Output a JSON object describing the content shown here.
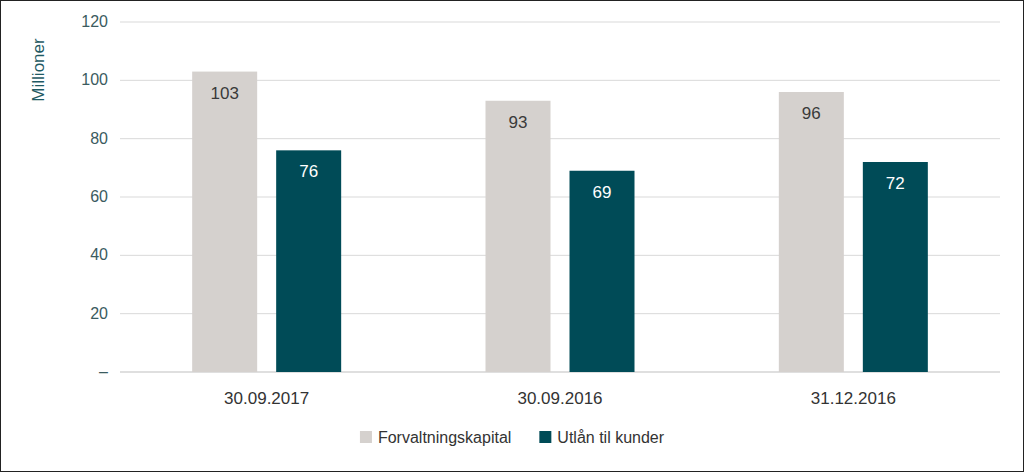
{
  "chart_data": {
    "type": "bar",
    "y_label": "Millioner",
    "categories": [
      "30.09.2017",
      "30.09.2016",
      "31.12.2016"
    ],
    "series": [
      {
        "name": "Forvaltningskapital",
        "color": "#d5d1ce",
        "values": [
          103,
          93,
          96
        ]
      },
      {
        "name": "Utlån til kunder",
        "color": "#004b57",
        "values": [
          76,
          69,
          72
        ]
      }
    ],
    "ylim": [
      0,
      120
    ],
    "yticks": [
      {
        "value": 0,
        "label": "–"
      },
      20,
      40,
      60,
      80,
      100,
      120
    ],
    "grid": true,
    "data_labels": true,
    "legend": "bottom"
  }
}
